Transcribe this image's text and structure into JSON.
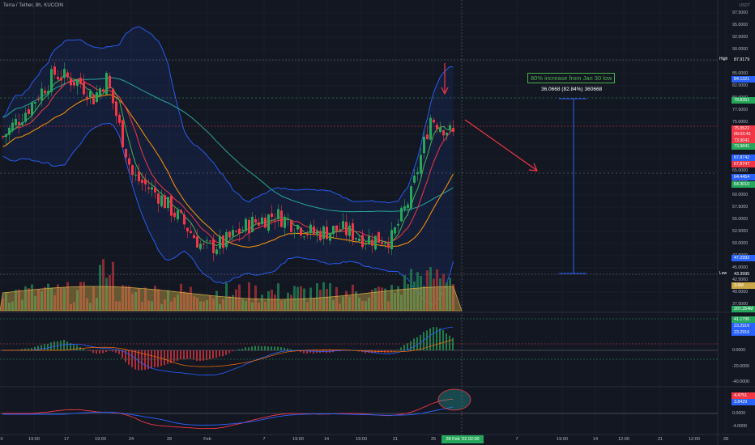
{
  "header": {
    "symbol_line": "Terra / Tether, 8h, KUCOIN",
    "quote_currency": "USDT"
  },
  "annotations": {
    "callout": "80% increase from Jan 30 low",
    "measure": "36.0668 (82.84%) 360668"
  },
  "price_axis": {
    "labels": [
      "97.5000",
      "95.0000",
      "92.5000",
      "90.0000",
      "87.5000",
      "85.0000",
      "82.5000",
      "80.0000",
      "77.5000",
      "75.0000",
      "72.5000",
      "70.0000",
      "67.5000",
      "65.0000",
      "62.5000",
      "60.0000",
      "57.5000",
      "55.0000",
      "52.5000",
      "50.0000",
      "47.5000",
      "45.0000",
      "42.5000",
      "40.0000",
      "37.5000"
    ],
    "high_label": "High",
    "high_value": "87.9179",
    "low_label": "Low",
    "low_value": "43.3995"
  },
  "price_tags": [
    {
      "value": "84.1321",
      "color": "#2962ff"
    },
    {
      "value": "79.8351",
      "color": "#26a65b"
    },
    {
      "value": "75.9522",
      "color": "#f23645"
    },
    {
      "value": "06:03:45",
      "color": "#f23645"
    },
    {
      "value": "73.9041",
      "color": "#f23645"
    },
    {
      "value": "73.9841",
      "color": "#26a65b"
    },
    {
      "value": "67.8742",
      "color": "#2962ff"
    },
    {
      "value": "67.8747",
      "color": "#f23645"
    },
    {
      "value": "64.4454",
      "color": "#2962ff"
    },
    {
      "value": "64.3010",
      "color": "#26a65b"
    },
    {
      "value": "47.2992",
      "color": "#2962ff"
    },
    {
      "value": "3.6M",
      "color": "#c9a646"
    },
    {
      "value": "207.354M",
      "color": "#26a65b"
    }
  ],
  "macd_axis": {
    "labels": [
      "20.0000",
      "0.0000",
      "-20.0000",
      "-40.0000"
    ],
    "tags": [
      {
        "value": "41.1795",
        "color": "#26a65b"
      },
      {
        "value": "23.2916",
        "color": "#2962ff"
      },
      {
        "value": "23.2916",
        "color": "#2962ff"
      }
    ]
  },
  "rsi_axis": {
    "labels": [
      "4.0000",
      "0.0000",
      "-4.0000"
    ],
    "tags": [
      {
        "value": "4.4751",
        "color": "#f23645"
      },
      {
        "value": "3.8429",
        "color": "#2962ff"
      }
    ]
  },
  "time_axis": {
    "labels": [
      "0",
      "19:00",
      "17",
      "19:00",
      "24",
      "28",
      "Feb",
      "7",
      "19:00",
      "14",
      "19:00",
      "21",
      "25",
      "7",
      "19:00",
      "14",
      "12:00",
      "21",
      "12:00",
      "28"
    ],
    "current_date": "28 Feb '22",
    "current_time": "02:00"
  },
  "colors": {
    "background": "#131722",
    "up": "#26a65b",
    "down": "#f23645",
    "band": "#2962ff",
    "accent_red": "#f23645"
  }
}
